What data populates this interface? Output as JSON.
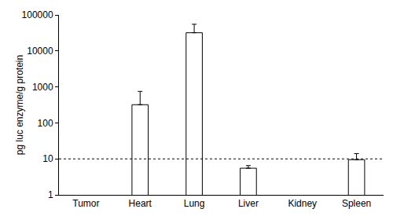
{
  "chart_data": {
    "type": "bar",
    "y_label": "pg luc enzyme/g protein",
    "categories": [
      "Tumor",
      "Heart",
      "Lung",
      "Liver",
      "Kidney",
      "Spleen"
    ],
    "values": [
      null,
      320,
      32000,
      5.5,
      null,
      9.5
    ],
    "error_plus": [
      null,
      430,
      23000,
      1,
      null,
      4.5
    ],
    "color": "#ffffff",
    "log": "y",
    "ylim": [
      1,
      100000
    ],
    "yticks": [
      1,
      10,
      100,
      1000,
      10000,
      100000
    ],
    "reference_line": 10,
    "grid": false
  }
}
